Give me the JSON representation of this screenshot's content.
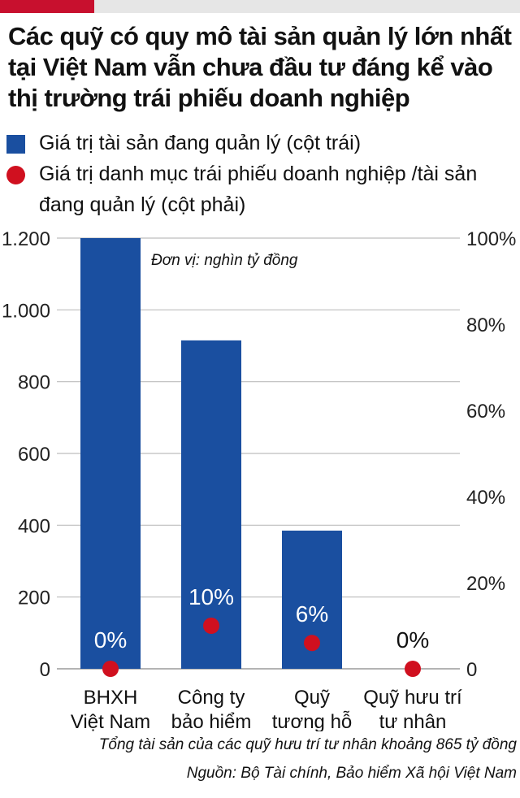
{
  "colors": {
    "accent_red": "#c8102e",
    "top_bar_grey": "#e6e6e6",
    "bar_blue": "#1a4fa0",
    "dot_red": "#d0101f",
    "grid": "#bdbdbd",
    "axis_text": "#222222"
  },
  "title": "Các quỹ có quy mô tài sản quản lý lớn nhất tại Việt Nam vẫn chưa đầu tư đáng kể vào thị trường trái phiếu doanh nghiệp",
  "chart_data": {
    "type": "bar",
    "categories": [
      [
        "BHXH",
        "Việt Nam"
      ],
      [
        "Công ty",
        "bảo hiểm"
      ],
      [
        "Quỹ",
        "tương hỗ"
      ],
      [
        "Quỹ hưu trí",
        "tư nhân"
      ]
    ],
    "series": [
      {
        "name": "Giá trị tài sản đang quản lý (cột trái)",
        "type": "bar",
        "axis": "left",
        "values": [
          1200,
          915,
          385,
          0
        ],
        "color": "#1a4fa0"
      },
      {
        "name": "Giá trị danh mục trái phiếu doanh nghiệp /tài sản đang quản lý (cột phải)",
        "type": "scatter",
        "axis": "right",
        "values": [
          0,
          10,
          6,
          0
        ],
        "labels": [
          "0%",
          "10%",
          "6%",
          "0%"
        ],
        "color": "#d0101f"
      }
    ],
    "left_axis": {
      "ylim": [
        0,
        1200
      ],
      "ticks": [
        0,
        200,
        400,
        600,
        800,
        1000,
        1200
      ],
      "tick_labels": [
        "0",
        "200",
        "400",
        "600",
        "800",
        "1.000",
        "1.200"
      ]
    },
    "right_axis": {
      "ylim": [
        0,
        100
      ],
      "ticks": [
        0,
        20,
        40,
        60,
        80,
        100
      ],
      "tick_labels": [
        "0",
        "20%",
        "40%",
        "60%",
        "80%",
        "100%"
      ]
    },
    "unit_note": "Đơn vị: nghìn tỷ đồng",
    "grid": true,
    "legend_position": "top-left"
  },
  "footnotes": [
    "Tổng tài sản của các quỹ hưu trí tư nhân khoảng 865 tỷ đồng",
    "Nguồn: Bộ Tài chính, Bảo hiểm Xã hội Việt Nam"
  ]
}
